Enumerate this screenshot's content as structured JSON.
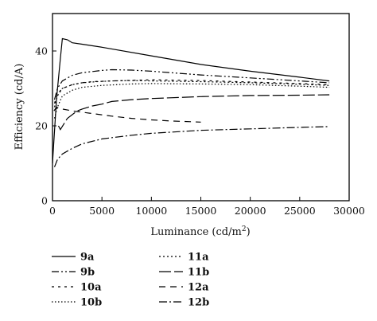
{
  "chart_data": {
    "type": "line",
    "xlabel_main": "Luminance (cd/m",
    "xlabel_sup": "2",
    "xlabel_tail": ")",
    "ylabel": "Efficiency (cd/A)",
    "xlim": [
      0,
      30000
    ],
    "ylim": [
      0,
      50
    ],
    "xticks": [
      0,
      5000,
      10000,
      15000,
      20000,
      25000,
      30000
    ],
    "yticks": [
      0,
      20,
      40
    ],
    "grid": false,
    "legend_placement": "bottom",
    "series": [
      {
        "name": "9a",
        "dash": "",
        "x": [
          0,
          400,
          800,
          1000,
          1500,
          2000,
          3000,
          5000,
          10000,
          15000,
          20000,
          25000,
          28000
        ],
        "y": [
          10,
          27,
          38,
          43.3,
          43,
          42.2,
          41.8,
          41,
          38.7,
          36.4,
          34.6,
          33,
          32
        ]
      },
      {
        "name": "9b",
        "dash": "9,3,2,3,2,3",
        "x": [
          200,
          500,
          1000,
          2000,
          3000,
          5000,
          6000,
          8000,
          10000,
          15000,
          20000,
          25000,
          28000
        ],
        "y": [
          27,
          30,
          32,
          33.5,
          34.2,
          34.8,
          35,
          34.9,
          34.6,
          33.6,
          32.8,
          32,
          31.5
        ]
      },
      {
        "name": "10a",
        "dash": "3,5",
        "x": [
          200,
          500,
          1000,
          2000,
          3000,
          4000,
          6000,
          10000,
          15000,
          20000,
          25000,
          28000
        ],
        "y": [
          26,
          28.5,
          30,
          31,
          31.5,
          31.8,
          32,
          32.3,
          32.1,
          31.7,
          31.3,
          31
        ]
      },
      {
        "name": "10b",
        "dash": "1.5,2.5",
        "x": [
          200,
          500,
          1000,
          2000,
          3000,
          5000,
          8000,
          10000,
          15000,
          20000,
          25000,
          28000
        ],
        "y": [
          22,
          25,
          28,
          29.5,
          30.3,
          30.8,
          31.2,
          31.3,
          31.2,
          31,
          30.6,
          30.3
        ]
      },
      {
        "name": "11a",
        "dash": "2,3",
        "x": [
          200,
          500,
          1000,
          2000,
          3000,
          4500,
          6000,
          8000,
          10000,
          15000,
          20000,
          25000,
          28000
        ],
        "y": [
          25,
          28,
          30,
          31,
          31.5,
          31.8,
          32,
          32.1,
          32,
          31.8,
          31.5,
          31.1,
          30.8
        ]
      },
      {
        "name": "11b",
        "dash": "15,4",
        "x": [
          600,
          800,
          1500,
          2500,
          3000,
          4000,
          5000,
          6000,
          8000,
          10000,
          15000,
          20000,
          25000,
          28000
        ],
        "y": [
          20,
          19,
          22,
          24,
          24.5,
          25.3,
          25.8,
          26.5,
          27,
          27.3,
          27.8,
          28.1,
          28.2,
          28.3
        ]
      },
      {
        "name": "12a",
        "dash": "8,6",
        "x": [
          150,
          400,
          1000,
          2000,
          4000,
          6000,
          8000,
          10000,
          12000,
          15000
        ],
        "y": [
          24,
          25,
          24.5,
          24,
          23.3,
          22.6,
          22,
          21.6,
          21.3,
          21
        ]
      },
      {
        "name": "12b",
        "dash": "10,3,2,3",
        "x": [
          200,
          500,
          1000,
          2000,
          3000,
          5000,
          8000,
          10000,
          15000,
          20000,
          25000,
          28000
        ],
        "y": [
          9,
          11,
          12.5,
          14,
          15.2,
          16.5,
          17.5,
          18,
          18.8,
          19.2,
          19.6,
          19.8
        ]
      }
    ]
  }
}
